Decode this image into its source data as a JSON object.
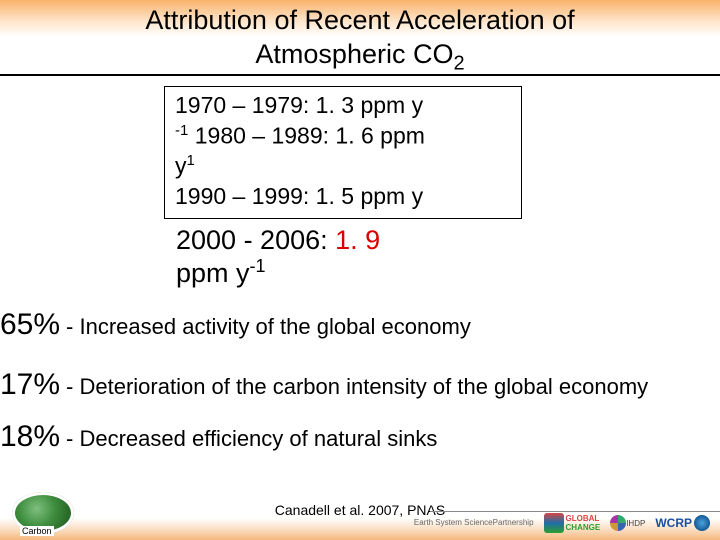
{
  "title_line1": "Attribution of Recent Acceleration of",
  "title_line2_a": "Atmospheric CO",
  "title_line2_sub": "2",
  "rates": {
    "l1a": "1970 – 1979: 1. 3 ppm y",
    "l2a": "-1",
    "l2b": " 1980 – 1989: 1. 6 ppm",
    "l3a": "y",
    "l3sup": "1",
    "l4": "1990 – 1999: 1. 5 ppm y"
  },
  "highlight": {
    "period": "2000 - 2006: ",
    "value": "1. 9",
    "unit_a": "ppm y",
    "unit_sup": "-1"
  },
  "attribution": [
    {
      "pct": "65%",
      "desc": " - Increased activity of the global economy"
    },
    {
      "pct": "17%",
      "desc": " - Deterioration of the carbon intensity of the global economy"
    },
    {
      "pct": "18%",
      "desc": " - Decreased efficiency of natural sinks"
    }
  ],
  "citation": "Canadell et al. 2007, PNAS",
  "logos": {
    "partnership_l1": "Earth System Science",
    "partnership_l2": "Partnership",
    "global": "GLOBAL",
    "change": "CHANGE",
    "ihdp": "IHDP",
    "wcrp": "WCRP"
  }
}
